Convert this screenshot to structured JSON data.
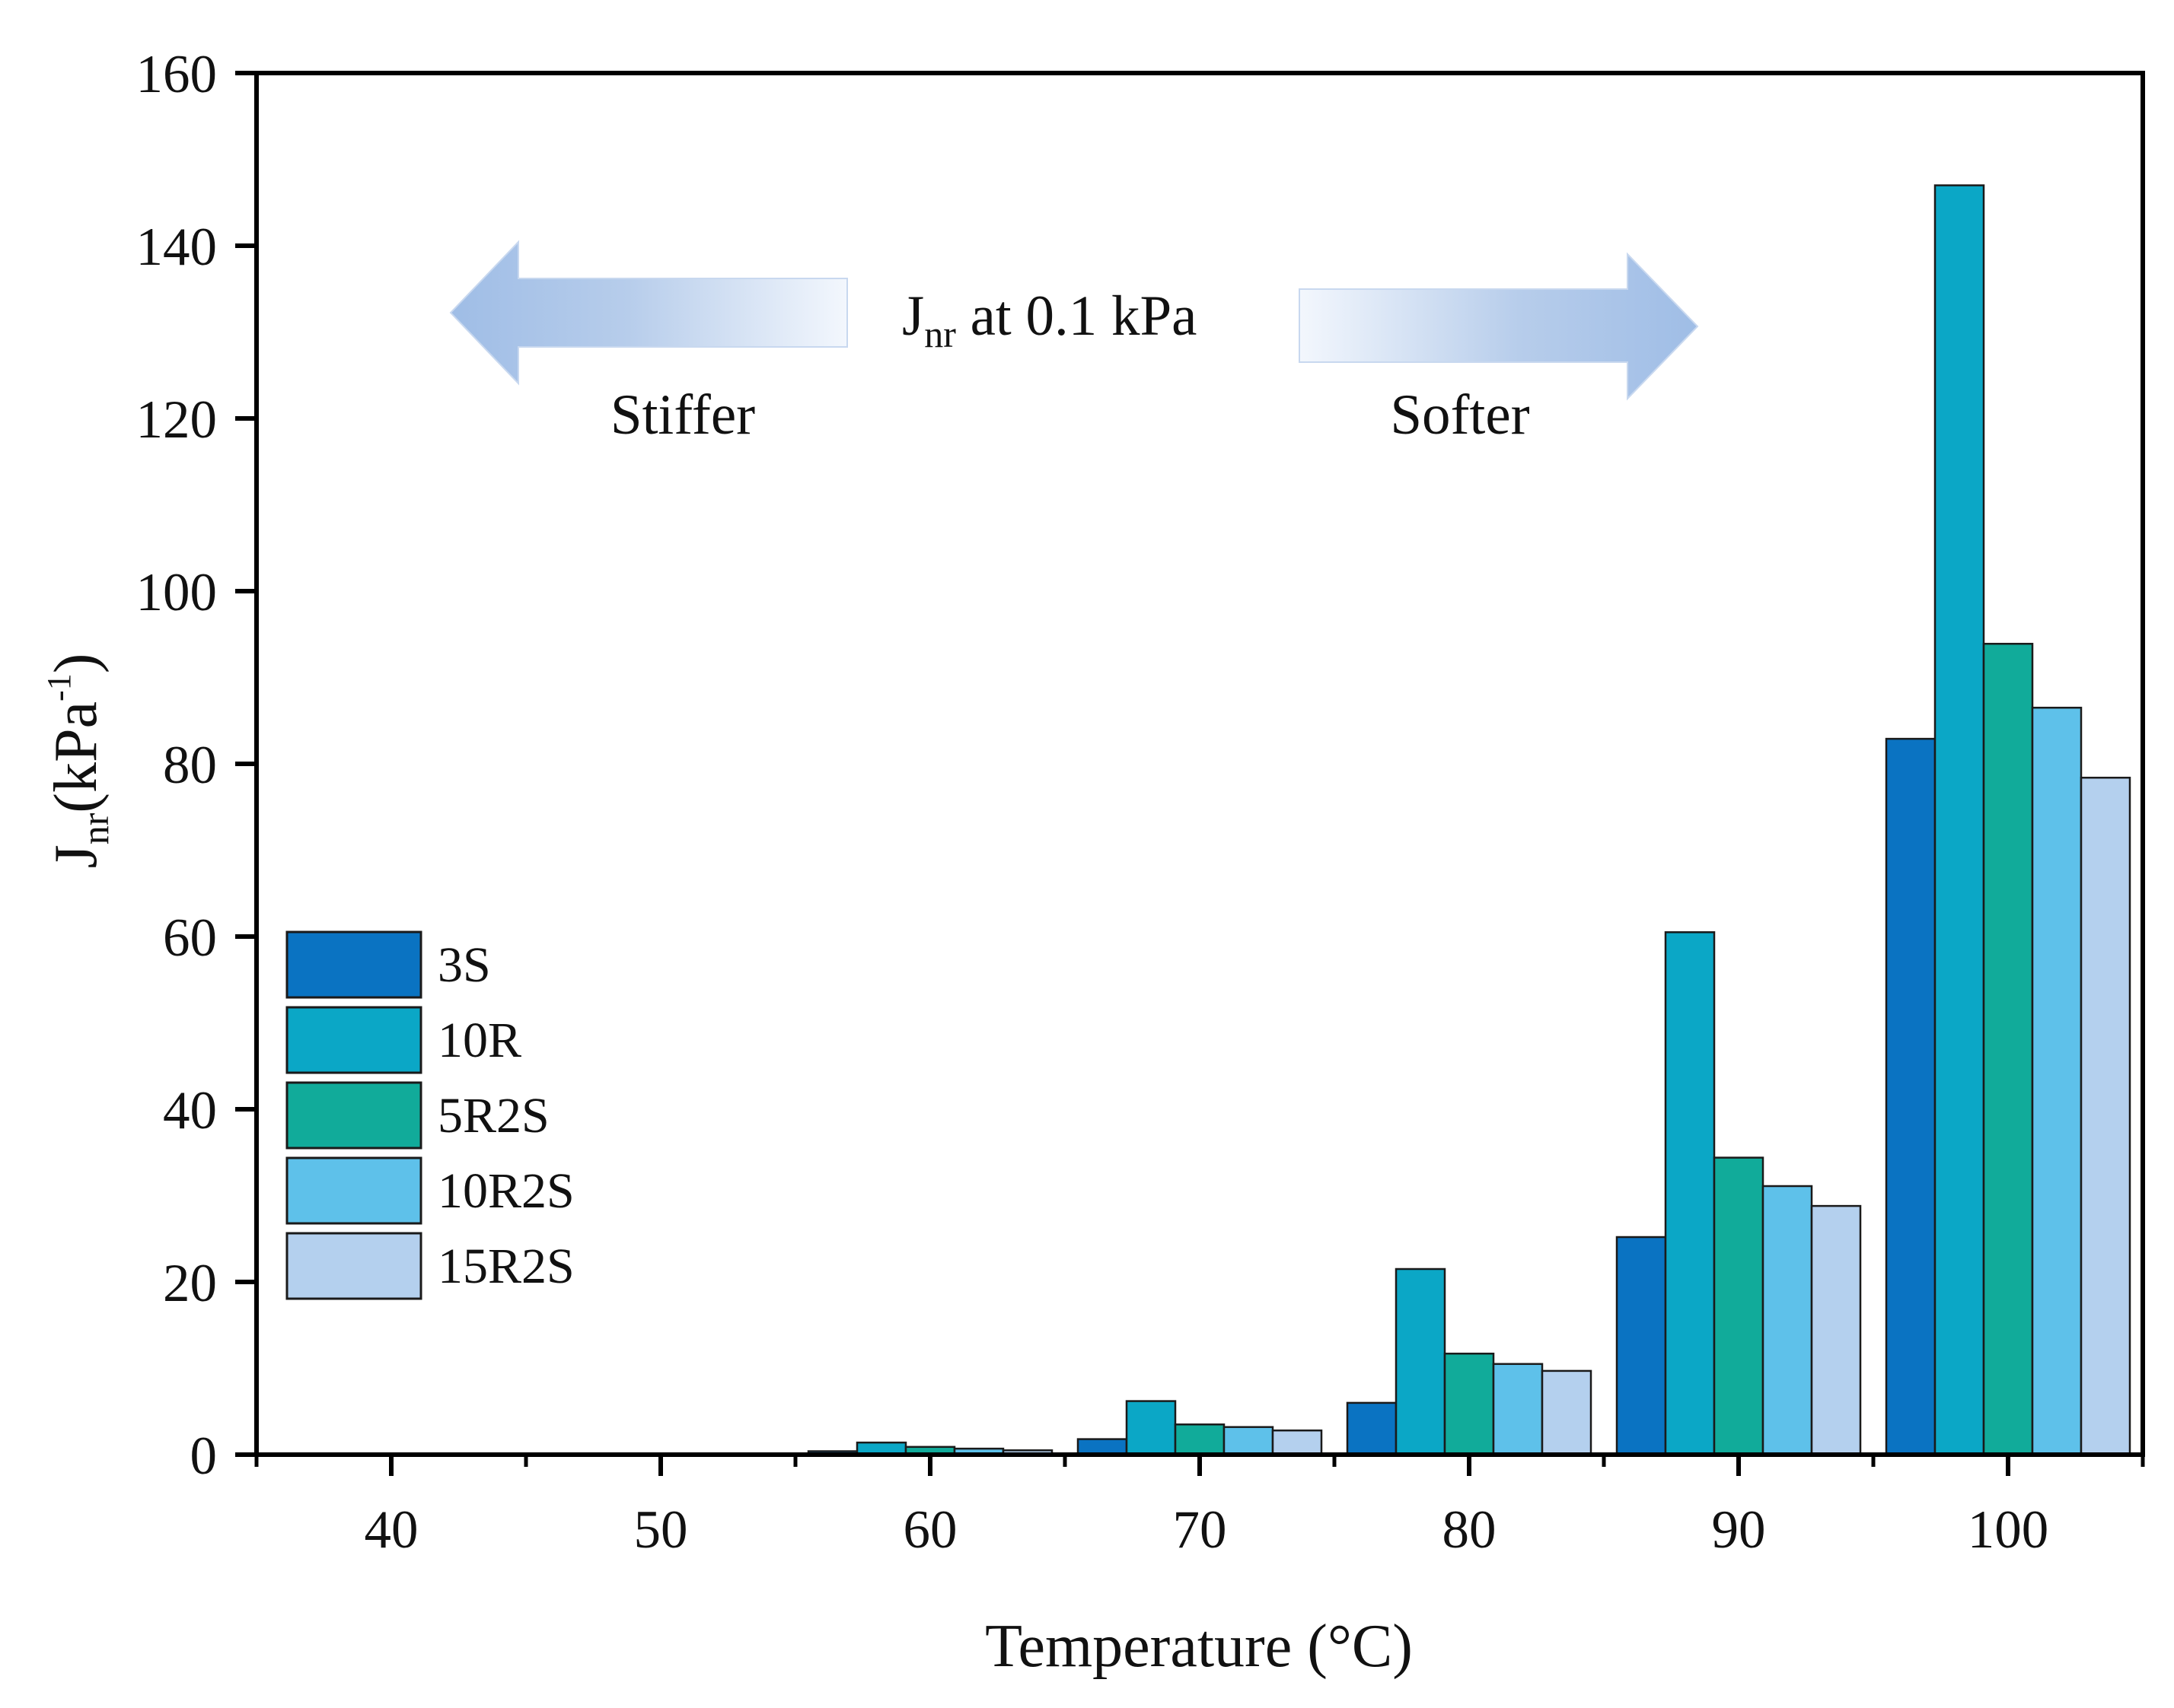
{
  "chart_data": {
    "type": "bar",
    "title": "",
    "xlabel": "Temperature (°C)",
    "ylabel": {
      "main": "J",
      "sub": "nr",
      "unit_open": "(kPa",
      "unit_sup": "-1",
      "unit_close": ")"
    },
    "categories": [
      "40",
      "50",
      "60",
      "70",
      "80",
      "90",
      "100"
    ],
    "ylim": [
      0,
      160
    ],
    "yticks": [
      0,
      20,
      40,
      60,
      80,
      100,
      120,
      140,
      160
    ],
    "series": [
      {
        "name": "3S",
        "color": "#0a73c2",
        "values": [
          0,
          0,
          0.4,
          1.8,
          6.0,
          25.2,
          82.9
        ]
      },
      {
        "name": "10R",
        "color": "#0ba7c6",
        "values": [
          0,
          0,
          1.4,
          6.2,
          21.5,
          60.5,
          147.0
        ]
      },
      {
        "name": "5R2S",
        "color": "#11ab9a",
        "values": [
          0,
          0,
          0.9,
          3.5,
          11.7,
          34.4,
          93.9
        ]
      },
      {
        "name": "10R2S",
        "color": "#5ec1ea",
        "values": [
          0,
          0,
          0.7,
          3.2,
          10.5,
          31.1,
          86.5
        ]
      },
      {
        "name": "15R2S",
        "color": "#b4d0ee",
        "values": [
          0,
          0,
          0.5,
          2.8,
          9.7,
          28.8,
          78.4
        ]
      }
    ],
    "legend_position": "left-middle",
    "annotations": {
      "center": {
        "main": "J",
        "sub": "nr",
        "rest": " at 0.1 kPa"
      },
      "left": "Stiffer",
      "right": "Softer"
    }
  }
}
